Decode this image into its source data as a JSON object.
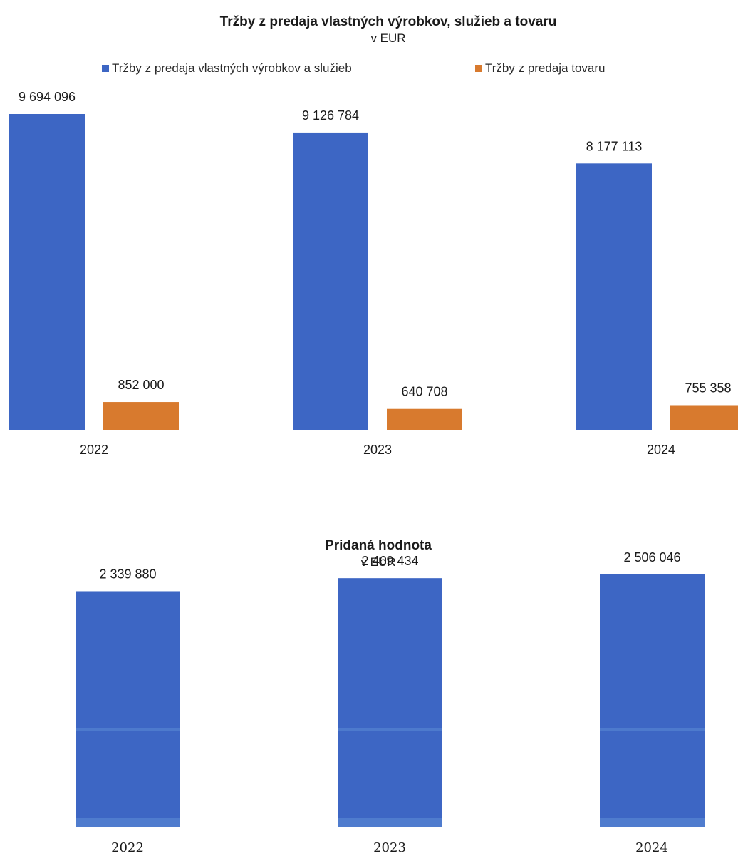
{
  "colors": {
    "services": "#3d66c4",
    "goods": "#d87a2e",
    "value_added": "#3d66c4",
    "value_added_stripe": "#5b8ad6"
  },
  "chart_data": [
    {
      "type": "bar",
      "title": "Tržby z predaja vlastných výrobkov, služieb a tovaru",
      "subtitle": "v EUR",
      "categories": [
        "2022",
        "2023",
        "2024"
      ],
      "series": [
        {
          "name": "Tržby z predaja vlastných výrobkov a služieb",
          "values": [
            9694096,
            9126784,
            8177113
          ],
          "labels": [
            "9 694 096",
            "9 126 784",
            "8 177 113"
          ]
        },
        {
          "name": "Tržby z predaja tovaru",
          "values": [
            852000,
            640708,
            755358
          ],
          "labels": [
            "852 000",
            "640 708",
            "755 358"
          ]
        }
      ],
      "legend": "top",
      "grid": false,
      "ylim": [
        0,
        9694096
      ]
    },
    {
      "type": "bar",
      "title": "Pridaná hodnota",
      "subtitle": "v EUR",
      "categories": [
        "2022",
        "2023",
        "2024"
      ],
      "series": [
        {
          "values": [
            2339880,
            2469434,
            2506046
          ],
          "labels": [
            "2 339 880",
            "2 469 434",
            "2 506 046"
          ]
        }
      ],
      "grid": false,
      "ylim": [
        0,
        2506046
      ]
    }
  ]
}
